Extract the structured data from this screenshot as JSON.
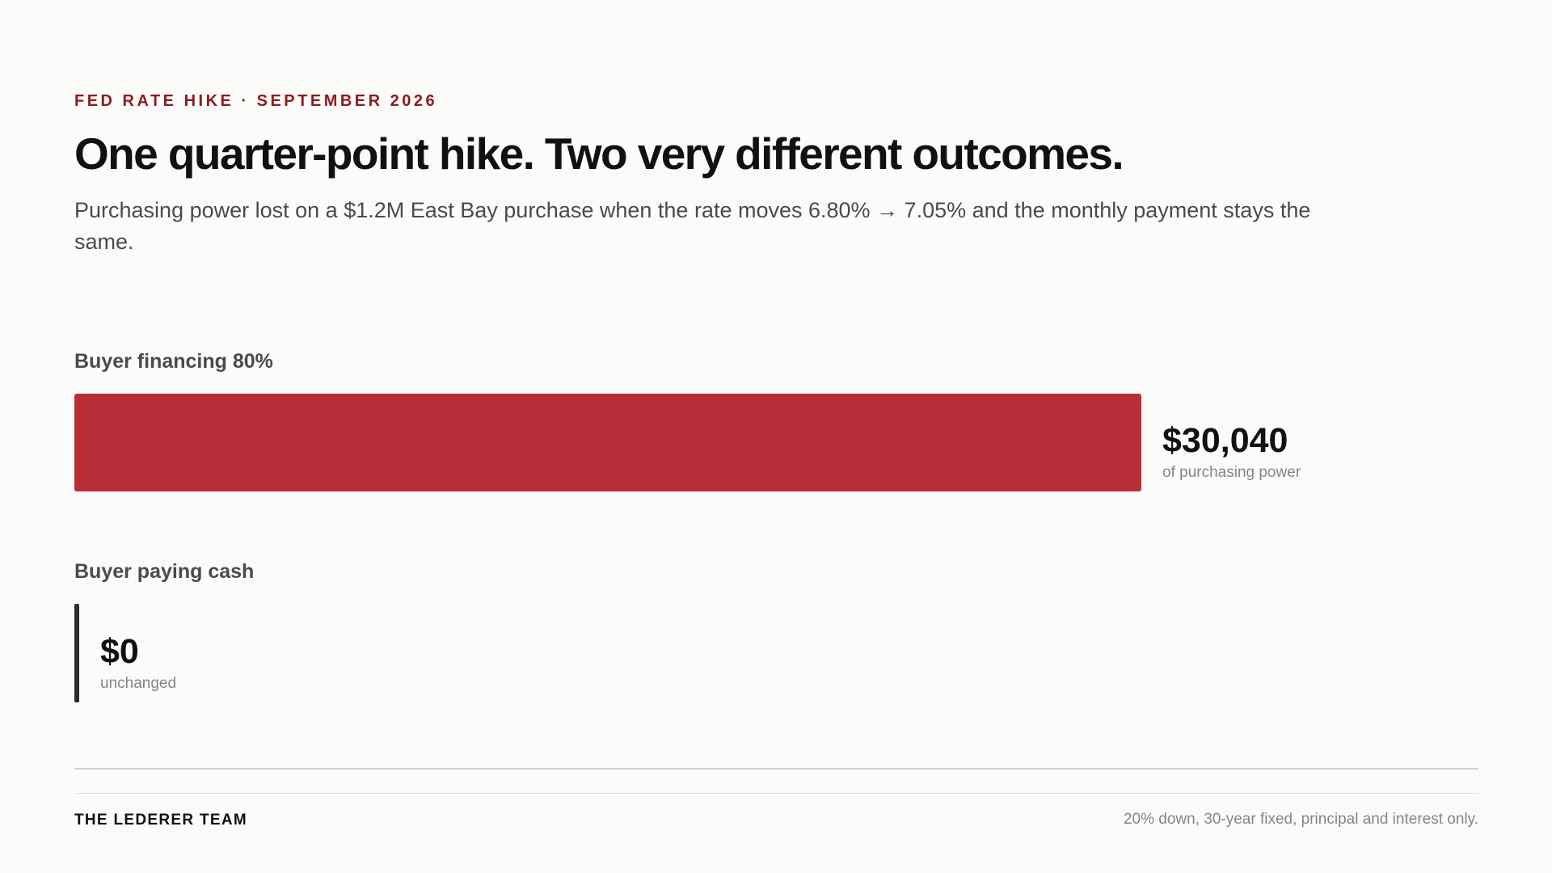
{
  "header": {
    "eyebrow": "FED RATE HIKE · SEPTEMBER 2026",
    "headline": "One quarter-point hike. Two very different outcomes.",
    "subhead": "Purchasing power lost on a $1.2M East Bay purchase when the rate moves 6.80% → 7.05% and the monthly payment stays the same."
  },
  "chart_data": {
    "type": "bar",
    "orientation": "horizontal",
    "categories": [
      "Buyer financing 80%",
      "Buyer paying cash"
    ],
    "values": [
      30040,
      0
    ],
    "data_labels": [
      "$30,040",
      "$0"
    ],
    "captions": [
      "of purchasing power",
      "unchanged"
    ],
    "bar_colors": [
      "#b82e36",
      "#2b2b2b"
    ],
    "title": "",
    "xlabel": "",
    "ylabel": "",
    "grid": false,
    "legend": "none"
  },
  "footer": {
    "brand": "THE LEDERER TEAM",
    "note": "20% down, 30-year fixed, principal and interest only."
  },
  "colors": {
    "accent": "#8e1b22",
    "bar": "#b82e36",
    "background": "#fbfbf9"
  }
}
